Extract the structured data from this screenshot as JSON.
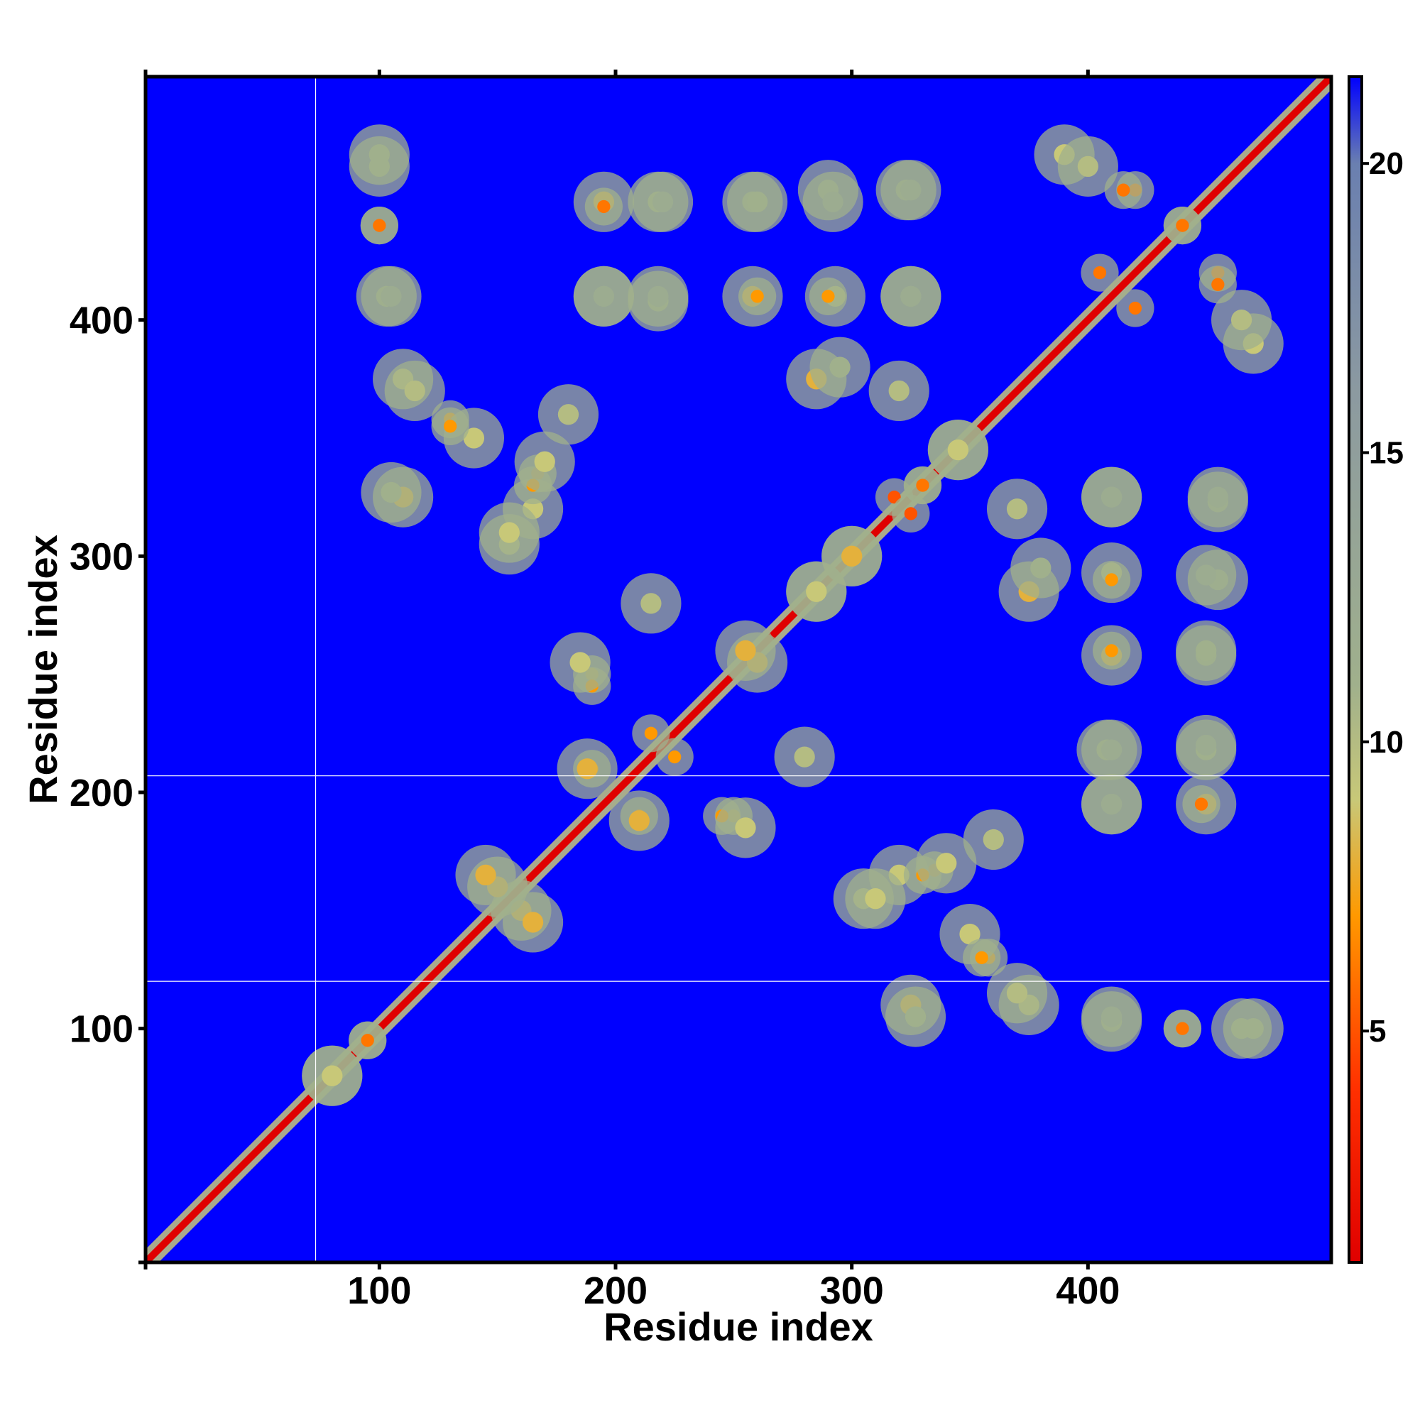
{
  "chart_data": {
    "type": "heatmap",
    "title": "",
    "xlabel": "Residue index",
    "ylabel": "Residue index",
    "xlim": [
      1,
      503
    ],
    "ylim": [
      1,
      503
    ],
    "x_ticks": [
      100,
      200,
      300,
      400
    ],
    "y_ticks": [
      100,
      200,
      300,
      400
    ],
    "grid": false,
    "legend": "colorbar-right",
    "colorbar": {
      "range": [
        1,
        21.5
      ],
      "ticks": [
        5,
        10,
        15,
        20
      ],
      "colors": [
        {
          "value": 1,
          "color": "#e00000"
        },
        {
          "value": 4,
          "color": "#ff3000"
        },
        {
          "value": 7,
          "color": "#ff9900"
        },
        {
          "value": 9,
          "color": "#c8c878"
        },
        {
          "value": 11,
          "color": "#a0b08c"
        },
        {
          "value": 16,
          "color": "#8c9aa0"
        },
        {
          "value": 20,
          "color": "#6a7fb0"
        },
        {
          "value": 21.5,
          "color": "#0000ff"
        }
      ]
    },
    "background_color": "#0000ff",
    "reference_lines": {
      "vertical_x": [
        73
      ],
      "horizontal_y": [
        120,
        207
      ]
    },
    "diagonal": {
      "from": 1,
      "to": 503,
      "value": 1,
      "halo_value": 9
    },
    "contact_clusters": [
      {
        "x": 100,
        "y": 465,
        "value": 11
      },
      {
        "x": 100,
        "y": 440,
        "value": 6
      },
      {
        "x": 103,
        "y": 410,
        "value": 12
      },
      {
        "x": 195,
        "y": 450,
        "value": 8
      },
      {
        "x": 218,
        "y": 450,
        "value": 11
      },
      {
        "x": 258,
        "y": 450,
        "value": 12
      },
      {
        "x": 290,
        "y": 455,
        "value": 13
      },
      {
        "x": 323,
        "y": 455,
        "value": 13
      },
      {
        "x": 195,
        "y": 410,
        "value": 11
      },
      {
        "x": 218,
        "y": 408,
        "value": 12
      },
      {
        "x": 258,
        "y": 410,
        "value": 8
      },
      {
        "x": 293,
        "y": 410,
        "value": 10
      },
      {
        "x": 325,
        "y": 410,
        "value": 12
      },
      {
        "x": 110,
        "y": 375,
        "value": 9
      },
      {
        "x": 130,
        "y": 358,
        "value": 7
      },
      {
        "x": 140,
        "y": 350,
        "value": 9
      },
      {
        "x": 167,
        "y": 335,
        "value": 6
      },
      {
        "x": 110,
        "y": 325,
        "value": 8
      },
      {
        "x": 155,
        "y": 305,
        "value": 10
      },
      {
        "x": 165,
        "y": 320,
        "value": 9
      },
      {
        "x": 285,
        "y": 375,
        "value": 8
      },
      {
        "x": 320,
        "y": 370,
        "value": 10
      },
      {
        "x": 190,
        "y": 250,
        "value": 7
      },
      {
        "x": 215,
        "y": 225,
        "value": 7
      },
      {
        "x": 260,
        "y": 255,
        "value": 8
      },
      {
        "x": 285,
        "y": 285,
        "value": 9
      },
      {
        "x": 300,
        "y": 300,
        "value": 8
      },
      {
        "x": 318,
        "y": 325,
        "value": 5
      },
      {
        "x": 330,
        "y": 330,
        "value": 6
      },
      {
        "x": 345,
        "y": 345,
        "value": 9
      },
      {
        "x": 210,
        "y": 190,
        "value": 7
      },
      {
        "x": 188,
        "y": 210,
        "value": 8
      },
      {
        "x": 245,
        "y": 190,
        "value": 7
      },
      {
        "x": 255,
        "y": 185,
        "value": 9
      },
      {
        "x": 280,
        "y": 215,
        "value": 10
      },
      {
        "x": 330,
        "y": 165,
        "value": 7
      },
      {
        "x": 340,
        "y": 170,
        "value": 9
      },
      {
        "x": 360,
        "y": 180,
        "value": 10
      },
      {
        "x": 310,
        "y": 155,
        "value": 9
      },
      {
        "x": 355,
        "y": 130,
        "value": 7
      },
      {
        "x": 370,
        "y": 115,
        "value": 10
      },
      {
        "x": 327,
        "y": 105,
        "value": 11
      },
      {
        "x": 410,
        "y": 105,
        "value": 12
      },
      {
        "x": 440,
        "y": 100,
        "value": 6
      },
      {
        "x": 470,
        "y": 100,
        "value": 11
      },
      {
        "x": 410,
        "y": 195,
        "value": 12
      },
      {
        "x": 448,
        "y": 195,
        "value": 6
      },
      {
        "x": 410,
        "y": 218,
        "value": 12
      },
      {
        "x": 450,
        "y": 220,
        "value": 12
      },
      {
        "x": 410,
        "y": 260,
        "value": 7
      },
      {
        "x": 450,
        "y": 260,
        "value": 11
      },
      {
        "x": 410,
        "y": 290,
        "value": 7
      },
      {
        "x": 450,
        "y": 292,
        "value": 12
      },
      {
        "x": 380,
        "y": 295,
        "value": 11
      },
      {
        "x": 410,
        "y": 325,
        "value": 12
      },
      {
        "x": 455,
        "y": 325,
        "value": 12
      },
      {
        "x": 420,
        "y": 455,
        "value": 6
      },
      {
        "x": 440,
        "y": 440,
        "value": 6
      },
      {
        "x": 455,
        "y": 415,
        "value": 6
      },
      {
        "x": 420,
        "y": 405,
        "value": 6
      },
      {
        "x": 470,
        "y": 390,
        "value": 9
      },
      {
        "x": 400,
        "y": 465,
        "value": 10
      },
      {
        "x": 160,
        "y": 150,
        "value": 8
      },
      {
        "x": 145,
        "y": 165,
        "value": 8
      },
      {
        "x": 95,
        "y": 95,
        "value": 6
      },
      {
        "x": 80,
        "y": 80,
        "value": 9
      }
    ]
  }
}
